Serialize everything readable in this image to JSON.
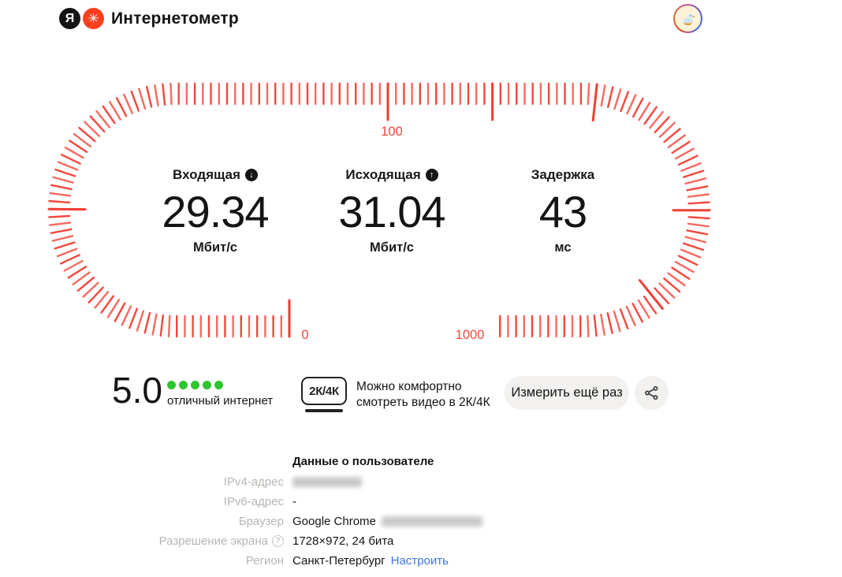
{
  "header": {
    "logo_letter": "Я",
    "brand": "Интернетометр"
  },
  "gauge": {
    "label_start": "0",
    "label_mid": "100",
    "label_end": "1000",
    "tick_color": "#f4473d",
    "tick_color_alt": "#f7695f",
    "major_color": "#ef3d33",
    "label_color": "#ef453c"
  },
  "metrics": [
    {
      "label": "Входящая",
      "icon": "download-arrow",
      "arrow": "↓",
      "value": "29.34",
      "unit": "Мбит/с"
    },
    {
      "label": "Исходящая",
      "icon": "upload-arrow",
      "arrow": "↑",
      "value": "31.04",
      "unit": "Мбит/с"
    },
    {
      "label": "Задержка",
      "icon": null,
      "arrow": "",
      "value": "43",
      "unit": "мс"
    }
  ],
  "rating": {
    "score": "5.0",
    "dots": 5,
    "dot_color": "#2ec42e",
    "caption": "отличный интернет"
  },
  "quality": {
    "badge": "2К/4К",
    "line1": "Можно комфортно",
    "line2": "смотреть видео в 2К/4К"
  },
  "actions": {
    "measure_again": "Измерить ещё раз"
  },
  "user_data": {
    "title": "Данные о пользователе",
    "rows": [
      {
        "label": "IPv4-адрес",
        "value": "",
        "redacted": true
      },
      {
        "label": "IPv6-адрес",
        "value": "-"
      },
      {
        "label": "Браузер",
        "value": "Google Chrome",
        "redacted_suffix": true
      },
      {
        "label": "Разрешение экрана",
        "value": "1728×972, 24 бита",
        "help_icon": true
      },
      {
        "label": "Регион",
        "value": "Санкт-Петербург",
        "link": "Настроить"
      }
    ]
  }
}
